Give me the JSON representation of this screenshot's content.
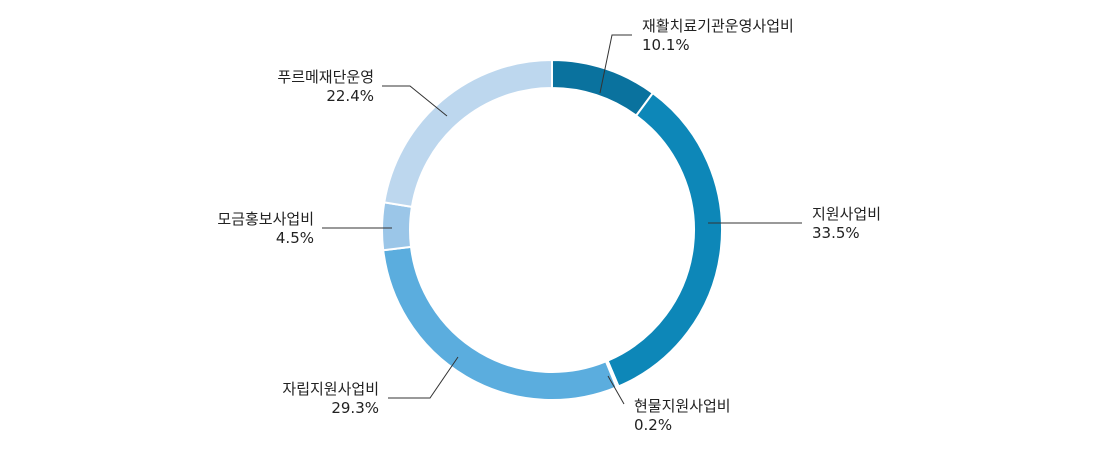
{
  "chart_data": {
    "type": "pie",
    "variant": "donut",
    "title": "",
    "legend": "none",
    "slices": [
      {
        "label": "재활치료기관운영사업비",
        "value": 10.1,
        "value_label": "10.1%",
        "color": "#0a729e"
      },
      {
        "label": "지원사업비",
        "value": 33.5,
        "value_label": "33.5%",
        "color": "#0d87b8"
      },
      {
        "label": "현물지원사업비",
        "value": 0.2,
        "value_label": "0.2%",
        "color": "#2e95c8"
      },
      {
        "label": "자립지원사업비",
        "value": 29.3,
        "value_label": "29.3%",
        "color": "#5badde"
      },
      {
        "label": "모금홍보사업비",
        "value": 4.5,
        "value_label": "4.5%",
        "color": "#9bc6e8"
      },
      {
        "label": "푸르메재단운영",
        "value": 22.4,
        "value_label": "22.4%",
        "color": "#bdd7ee"
      }
    ]
  }
}
